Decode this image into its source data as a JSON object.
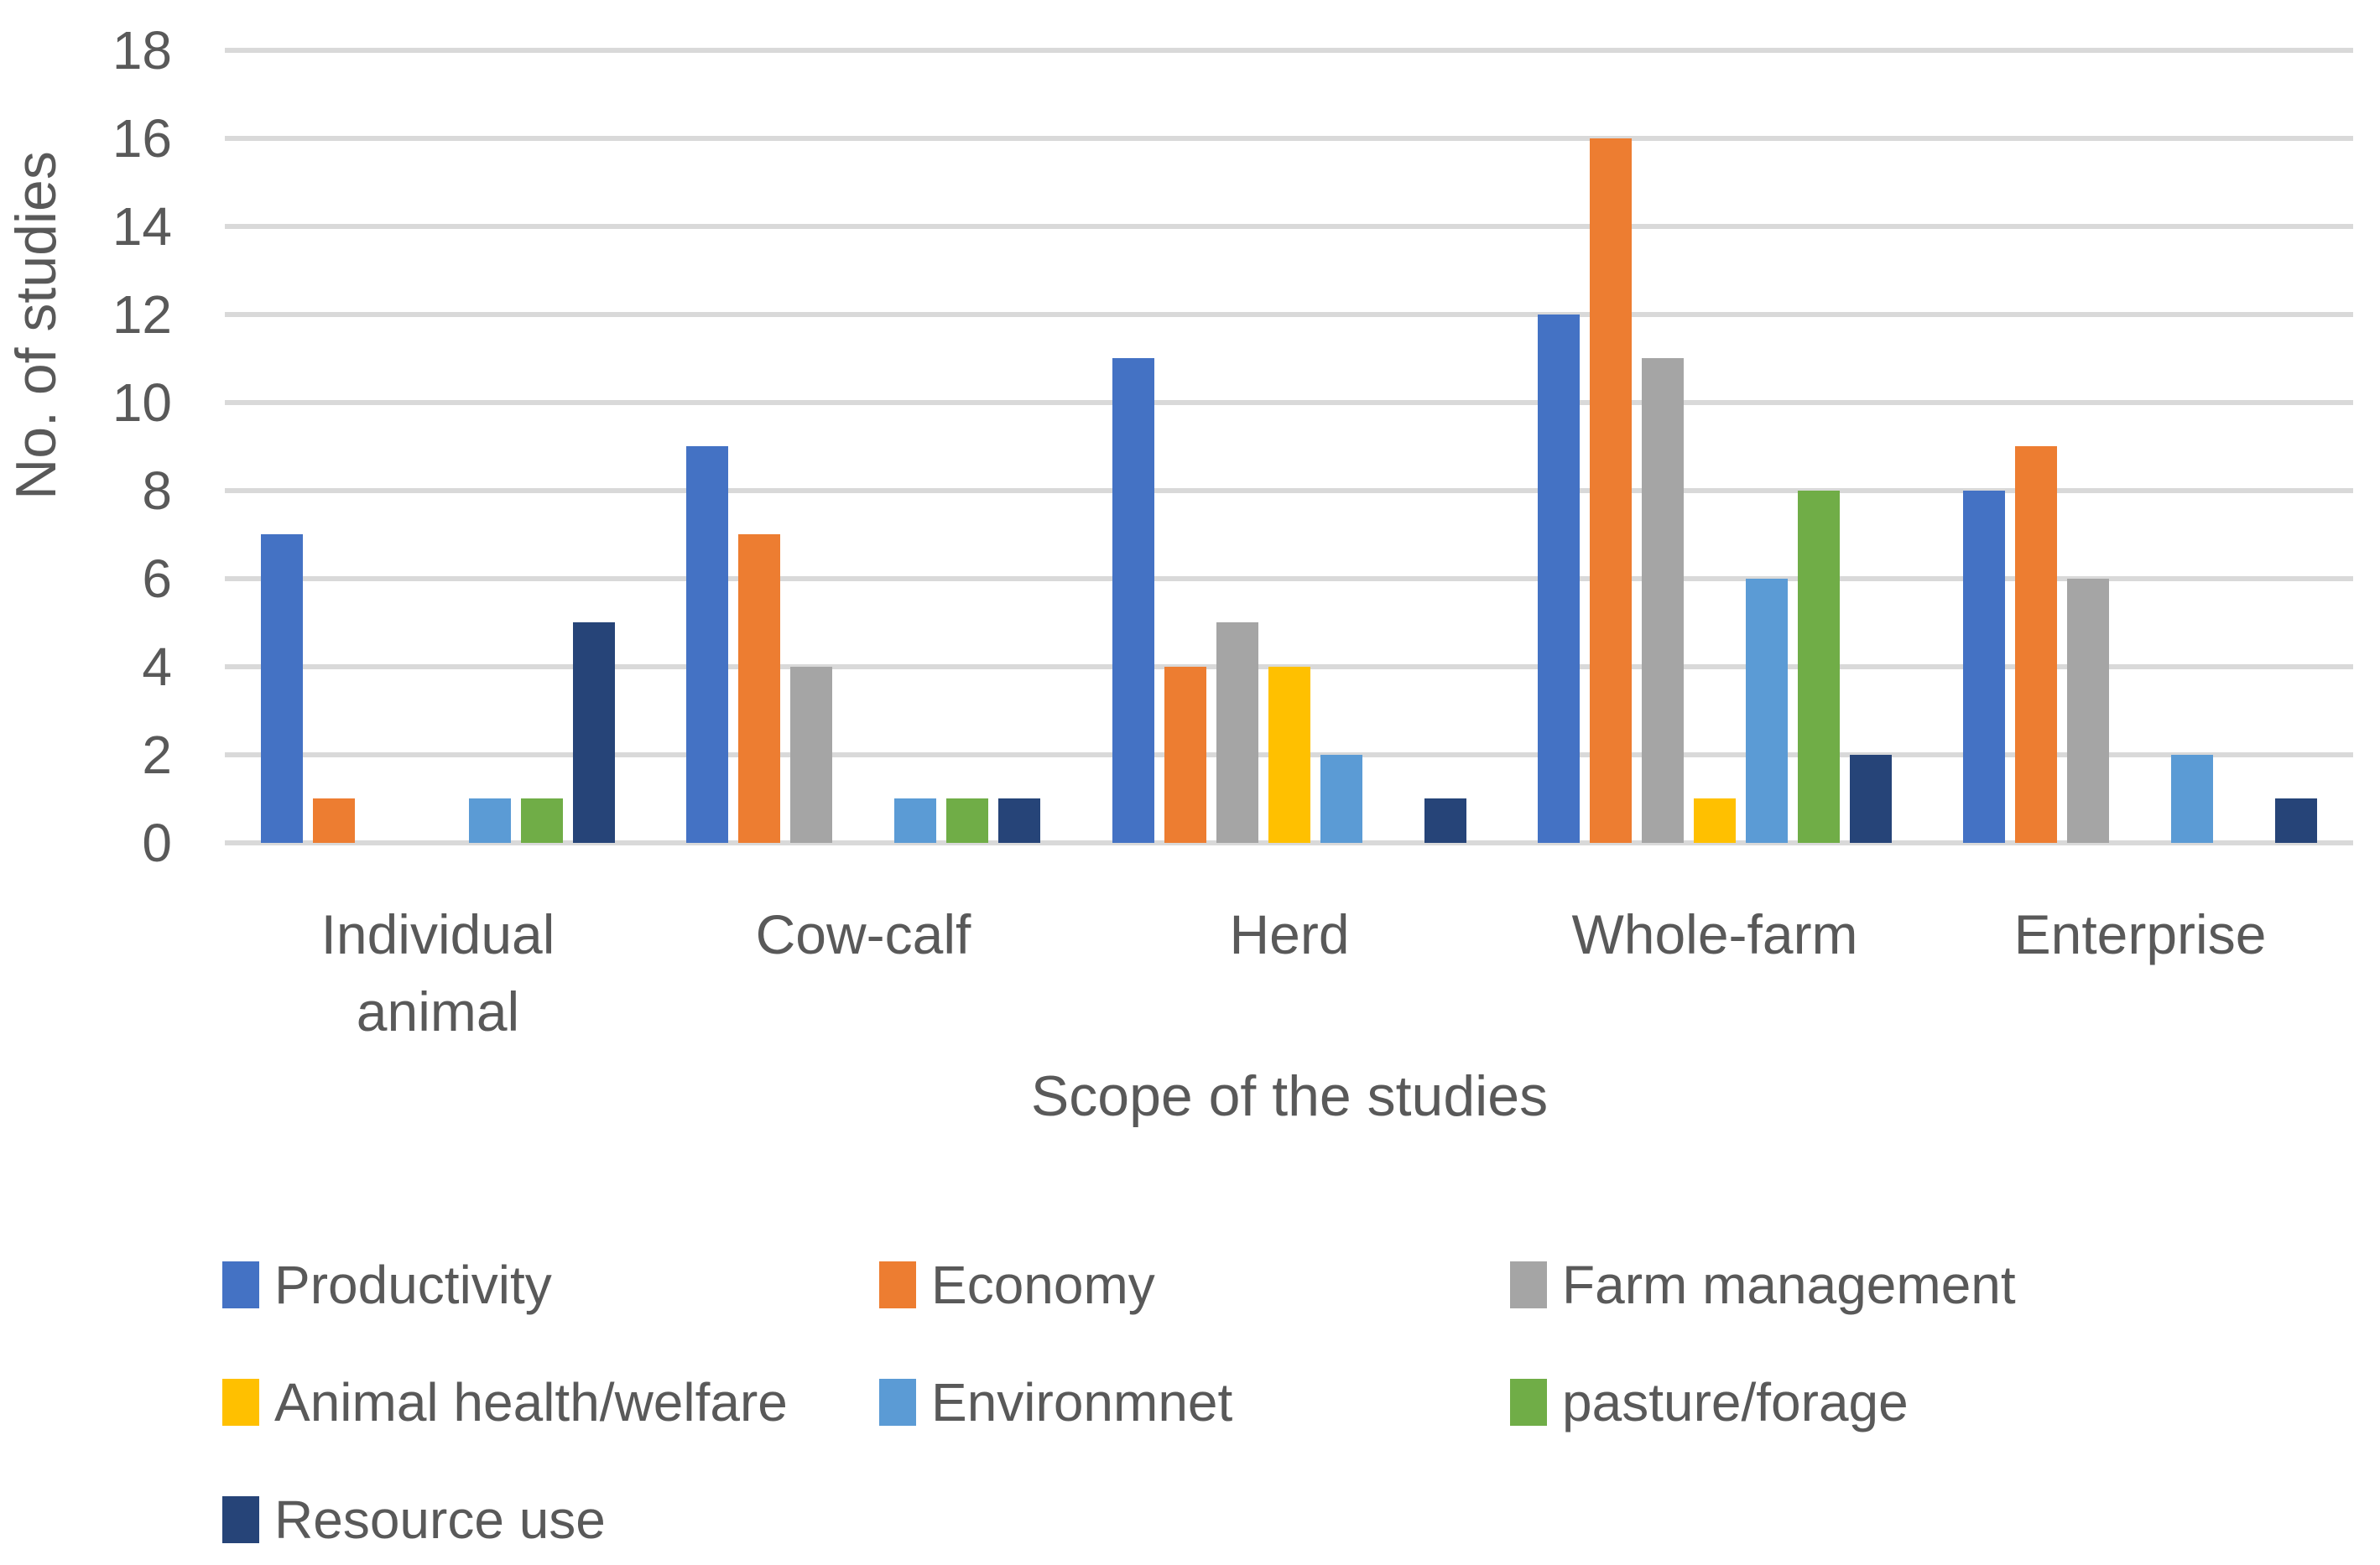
{
  "chart_data": {
    "type": "bar",
    "title": "",
    "xlabel": "Scope of the studies",
    "ylabel": "No. of studies",
    "ylim": [
      0,
      18
    ],
    "y_ticks": [
      0,
      2,
      4,
      6,
      8,
      10,
      12,
      14,
      16,
      18
    ],
    "grid": true,
    "legend_position": "bottom",
    "categories": [
      "Individual animal",
      "Cow-calf",
      "Herd",
      "Whole-farm",
      "Enterprise"
    ],
    "series": [
      {
        "name": "Productivity",
        "color": "#4472C4",
        "values": [
          7,
          9,
          11,
          12,
          8
        ]
      },
      {
        "name": "Economy",
        "color": "#ED7D31",
        "values": [
          1,
          7,
          4,
          16,
          9
        ]
      },
      {
        "name": "Farm management",
        "color": "#A5A5A5",
        "values": [
          0,
          4,
          5,
          11,
          6
        ]
      },
      {
        "name": "Animal health/welfare",
        "color": "#FFC000",
        "values": [
          0,
          0,
          4,
          1,
          0
        ]
      },
      {
        "name": "Environmnet",
        "color": "#5B9BD5",
        "values": [
          1,
          1,
          2,
          6,
          2
        ]
      },
      {
        "name": "pasture/forage",
        "color": "#70AD47",
        "values": [
          1,
          1,
          0,
          8,
          0
        ]
      },
      {
        "name": "Resource use",
        "color": "#264478",
        "values": [
          5,
          1,
          1,
          2,
          1
        ]
      }
    ],
    "colors": {
      "text": "#595959",
      "gridline": "#D9D9D9",
      "background": "#FFFFFF"
    }
  }
}
